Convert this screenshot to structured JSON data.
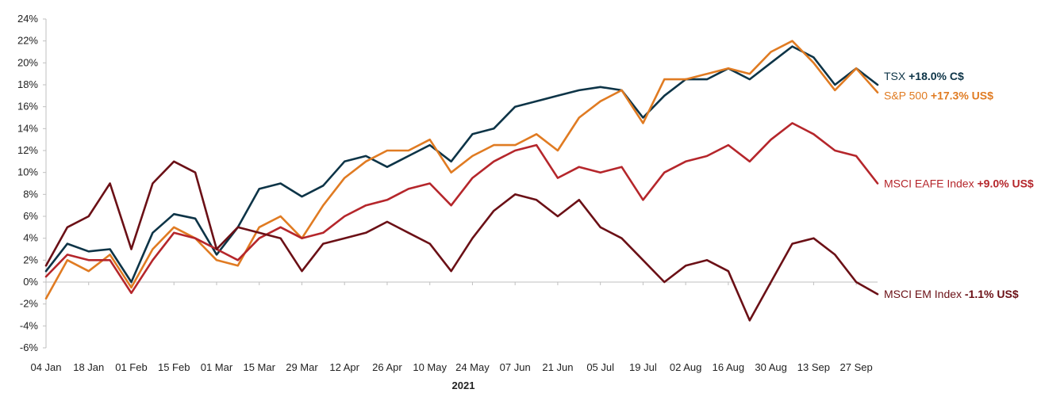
{
  "chart_data": {
    "type": "line",
    "xlabel": "2021",
    "ylabel": "",
    "ylim": [
      -6,
      24
    ],
    "yticks": [
      "-6%",
      "-4%",
      "-2%",
      "0%",
      "2%",
      "4%",
      "6%",
      "8%",
      "10%",
      "12%",
      "14%",
      "16%",
      "18%",
      "20%",
      "22%",
      "24%"
    ],
    "xticks": [
      "04 Jan",
      "18 Jan",
      "01 Feb",
      "15 Feb",
      "01 Mar",
      "15 Mar",
      "29 Mar",
      "12 Apr",
      "26 Apr",
      "10 May",
      "24 May",
      "07 Jun",
      "21 Jun",
      "05 Jul",
      "19 Jul",
      "02 Aug",
      "16 Aug",
      "30 Aug",
      "13 Sep",
      "27 Sep"
    ],
    "grid": false,
    "x": [
      "04 Jan",
      "11 Jan",
      "18 Jan",
      "25 Jan",
      "01 Feb",
      "08 Feb",
      "15 Feb",
      "22 Feb",
      "01 Mar",
      "08 Mar",
      "15 Mar",
      "22 Mar",
      "29 Mar",
      "05 Apr",
      "12 Apr",
      "19 Apr",
      "26 Apr",
      "03 May",
      "10 May",
      "17 May",
      "24 May",
      "31 May",
      "07 Jun",
      "14 Jun",
      "21 Jun",
      "28 Jun",
      "05 Jul",
      "12 Jul",
      "19 Jul",
      "26 Jul",
      "02 Aug",
      "09 Aug",
      "16 Aug",
      "23 Aug",
      "30 Aug",
      "06 Sep",
      "13 Sep",
      "20 Sep",
      "27 Sep",
      "30 Sep"
    ],
    "series": [
      {
        "name": "TSX",
        "value_label": "+18.0% C$",
        "color": "#0d3447",
        "values": [
          1.0,
          3.5,
          2.8,
          3.0,
          0.0,
          4.5,
          6.2,
          5.8,
          2.5,
          5.0,
          8.5,
          9.0,
          7.8,
          8.8,
          11.0,
          11.5,
          10.5,
          11.5,
          12.5,
          11.0,
          13.5,
          14.0,
          16.0,
          16.5,
          17.0,
          17.5,
          17.8,
          17.5,
          15.0,
          17.0,
          18.5,
          18.5,
          19.5,
          18.5,
          20.0,
          21.5,
          20.5,
          18.0,
          19.5,
          18.0
        ]
      },
      {
        "name": "S&P 500",
        "value_label": "+17.3% US$",
        "color": "#e07b22",
        "values": [
          -1.5,
          2.0,
          1.0,
          2.5,
          -0.5,
          3.0,
          5.0,
          4.0,
          2.0,
          1.5,
          5.0,
          6.0,
          4.0,
          7.0,
          9.5,
          11.0,
          12.0,
          12.0,
          13.0,
          10.0,
          11.5,
          12.5,
          12.5,
          13.5,
          12.0,
          15.0,
          16.5,
          17.5,
          14.5,
          18.5,
          18.5,
          19.0,
          19.5,
          19.0,
          21.0,
          22.0,
          20.0,
          17.5,
          19.5,
          17.3
        ]
      },
      {
        "name": "MSCI EAFE Index",
        "value_label": "+9.0% US$",
        "color": "#b5262b",
        "values": [
          0.5,
          2.5,
          2.0,
          2.0,
          -1.0,
          2.0,
          4.5,
          4.0,
          3.0,
          2.0,
          4.0,
          5.0,
          4.0,
          4.5,
          6.0,
          7.0,
          7.5,
          8.5,
          9.0,
          7.0,
          9.5,
          11.0,
          12.0,
          12.5,
          9.5,
          10.5,
          10.0,
          10.5,
          7.5,
          10.0,
          11.0,
          11.5,
          12.5,
          11.0,
          13.0,
          14.5,
          13.5,
          12.0,
          11.5,
          9.0
        ]
      },
      {
        "name": "MSCI EM Index",
        "value_label": "-1.1% US$",
        "color": "#6b1016",
        "values": [
          1.5,
          5.0,
          6.0,
          9.0,
          3.0,
          9.0,
          11.0,
          10.0,
          3.0,
          5.0,
          4.5,
          4.0,
          1.0,
          3.5,
          4.0,
          4.5,
          5.5,
          4.5,
          3.5,
          1.0,
          4.0,
          6.5,
          8.0,
          7.5,
          6.0,
          7.5,
          5.0,
          4.0,
          2.0,
          0.0,
          1.5,
          2.0,
          1.0,
          -3.5,
          0.0,
          3.5,
          4.0,
          2.5,
          0.0,
          -1.1
        ]
      }
    ]
  }
}
